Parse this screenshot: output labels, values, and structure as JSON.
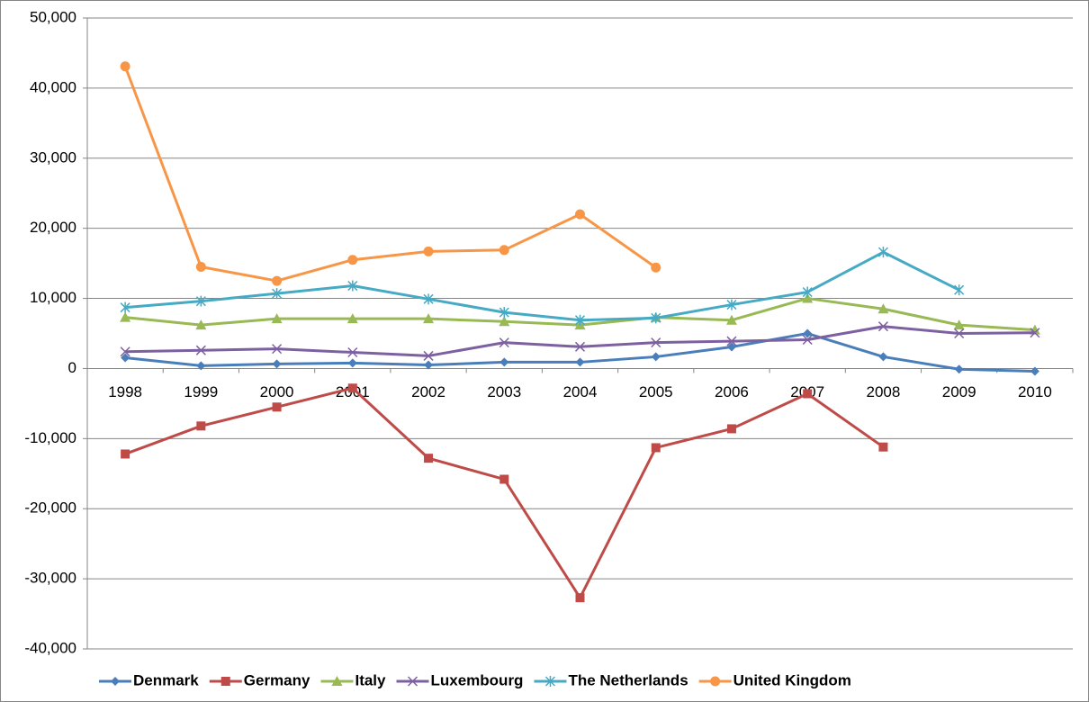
{
  "chart_data": {
    "type": "line",
    "categories": [
      "1998",
      "1999",
      "2000",
      "2001",
      "2002",
      "2003",
      "2004",
      "2005",
      "2006",
      "2007",
      "2008",
      "2009",
      "2010"
    ],
    "ylim": [
      -40000,
      50000
    ],
    "yticks": [
      {
        "value": -40000,
        "label": "-40,000"
      },
      {
        "value": -30000,
        "label": "-30,000"
      },
      {
        "value": -20000,
        "label": "-20,000"
      },
      {
        "value": -10000,
        "label": "-10,000"
      },
      0,
      {
        "value": 10000,
        "label": "10,000"
      },
      {
        "value": 20000,
        "label": "20,000"
      },
      {
        "value": 30000,
        "label": "30,000"
      },
      {
        "value": 40000,
        "label": "40,000"
      },
      {
        "value": 50000,
        "label": "50,000"
      }
    ],
    "grid": true,
    "legend": "bottom",
    "series": [
      {
        "name": "Denmark",
        "color": "#4a7ebb",
        "marker": "diamond",
        "values": [
          1540,
          400,
          650,
          780,
          500,
          900,
          900,
          1670,
          3080,
          5000,
          1670,
          -100,
          -400
        ]
      },
      {
        "name": "Germany",
        "color": "#be4b48",
        "marker": "square",
        "values": [
          -12200,
          -8200,
          -5500,
          -2800,
          -12800,
          -15800,
          -32700,
          -11300,
          -8600,
          -3600,
          -11200,
          null,
          null
        ]
      },
      {
        "name": "Italy",
        "color": "#98b954",
        "marker": "triangle",
        "values": [
          7300,
          6200,
          7100,
          7100,
          7100,
          6700,
          6200,
          7300,
          6900,
          10000,
          8500,
          6200,
          5500
        ]
      },
      {
        "name": "Luxembourg",
        "color": "#7d60a0",
        "marker": "x",
        "values": [
          2400,
          2600,
          2800,
          2300,
          1800,
          3700,
          3100,
          3700,
          3900,
          4100,
          6000,
          5000,
          5100
        ]
      },
      {
        "name": "The Netherlands",
        "color": "#46aac5",
        "marker": "star",
        "values": [
          8700,
          9600,
          10700,
          11800,
          9900,
          8000,
          6900,
          7200,
          9100,
          10900,
          16600,
          11200,
          null
        ]
      },
      {
        "name": "United Kingdom",
        "color": "#f79646",
        "marker": "circle",
        "values": [
          43100,
          14500,
          12500,
          15500,
          16700,
          16900,
          22000,
          14400,
          null,
          null,
          null,
          null,
          null
        ]
      }
    ]
  }
}
